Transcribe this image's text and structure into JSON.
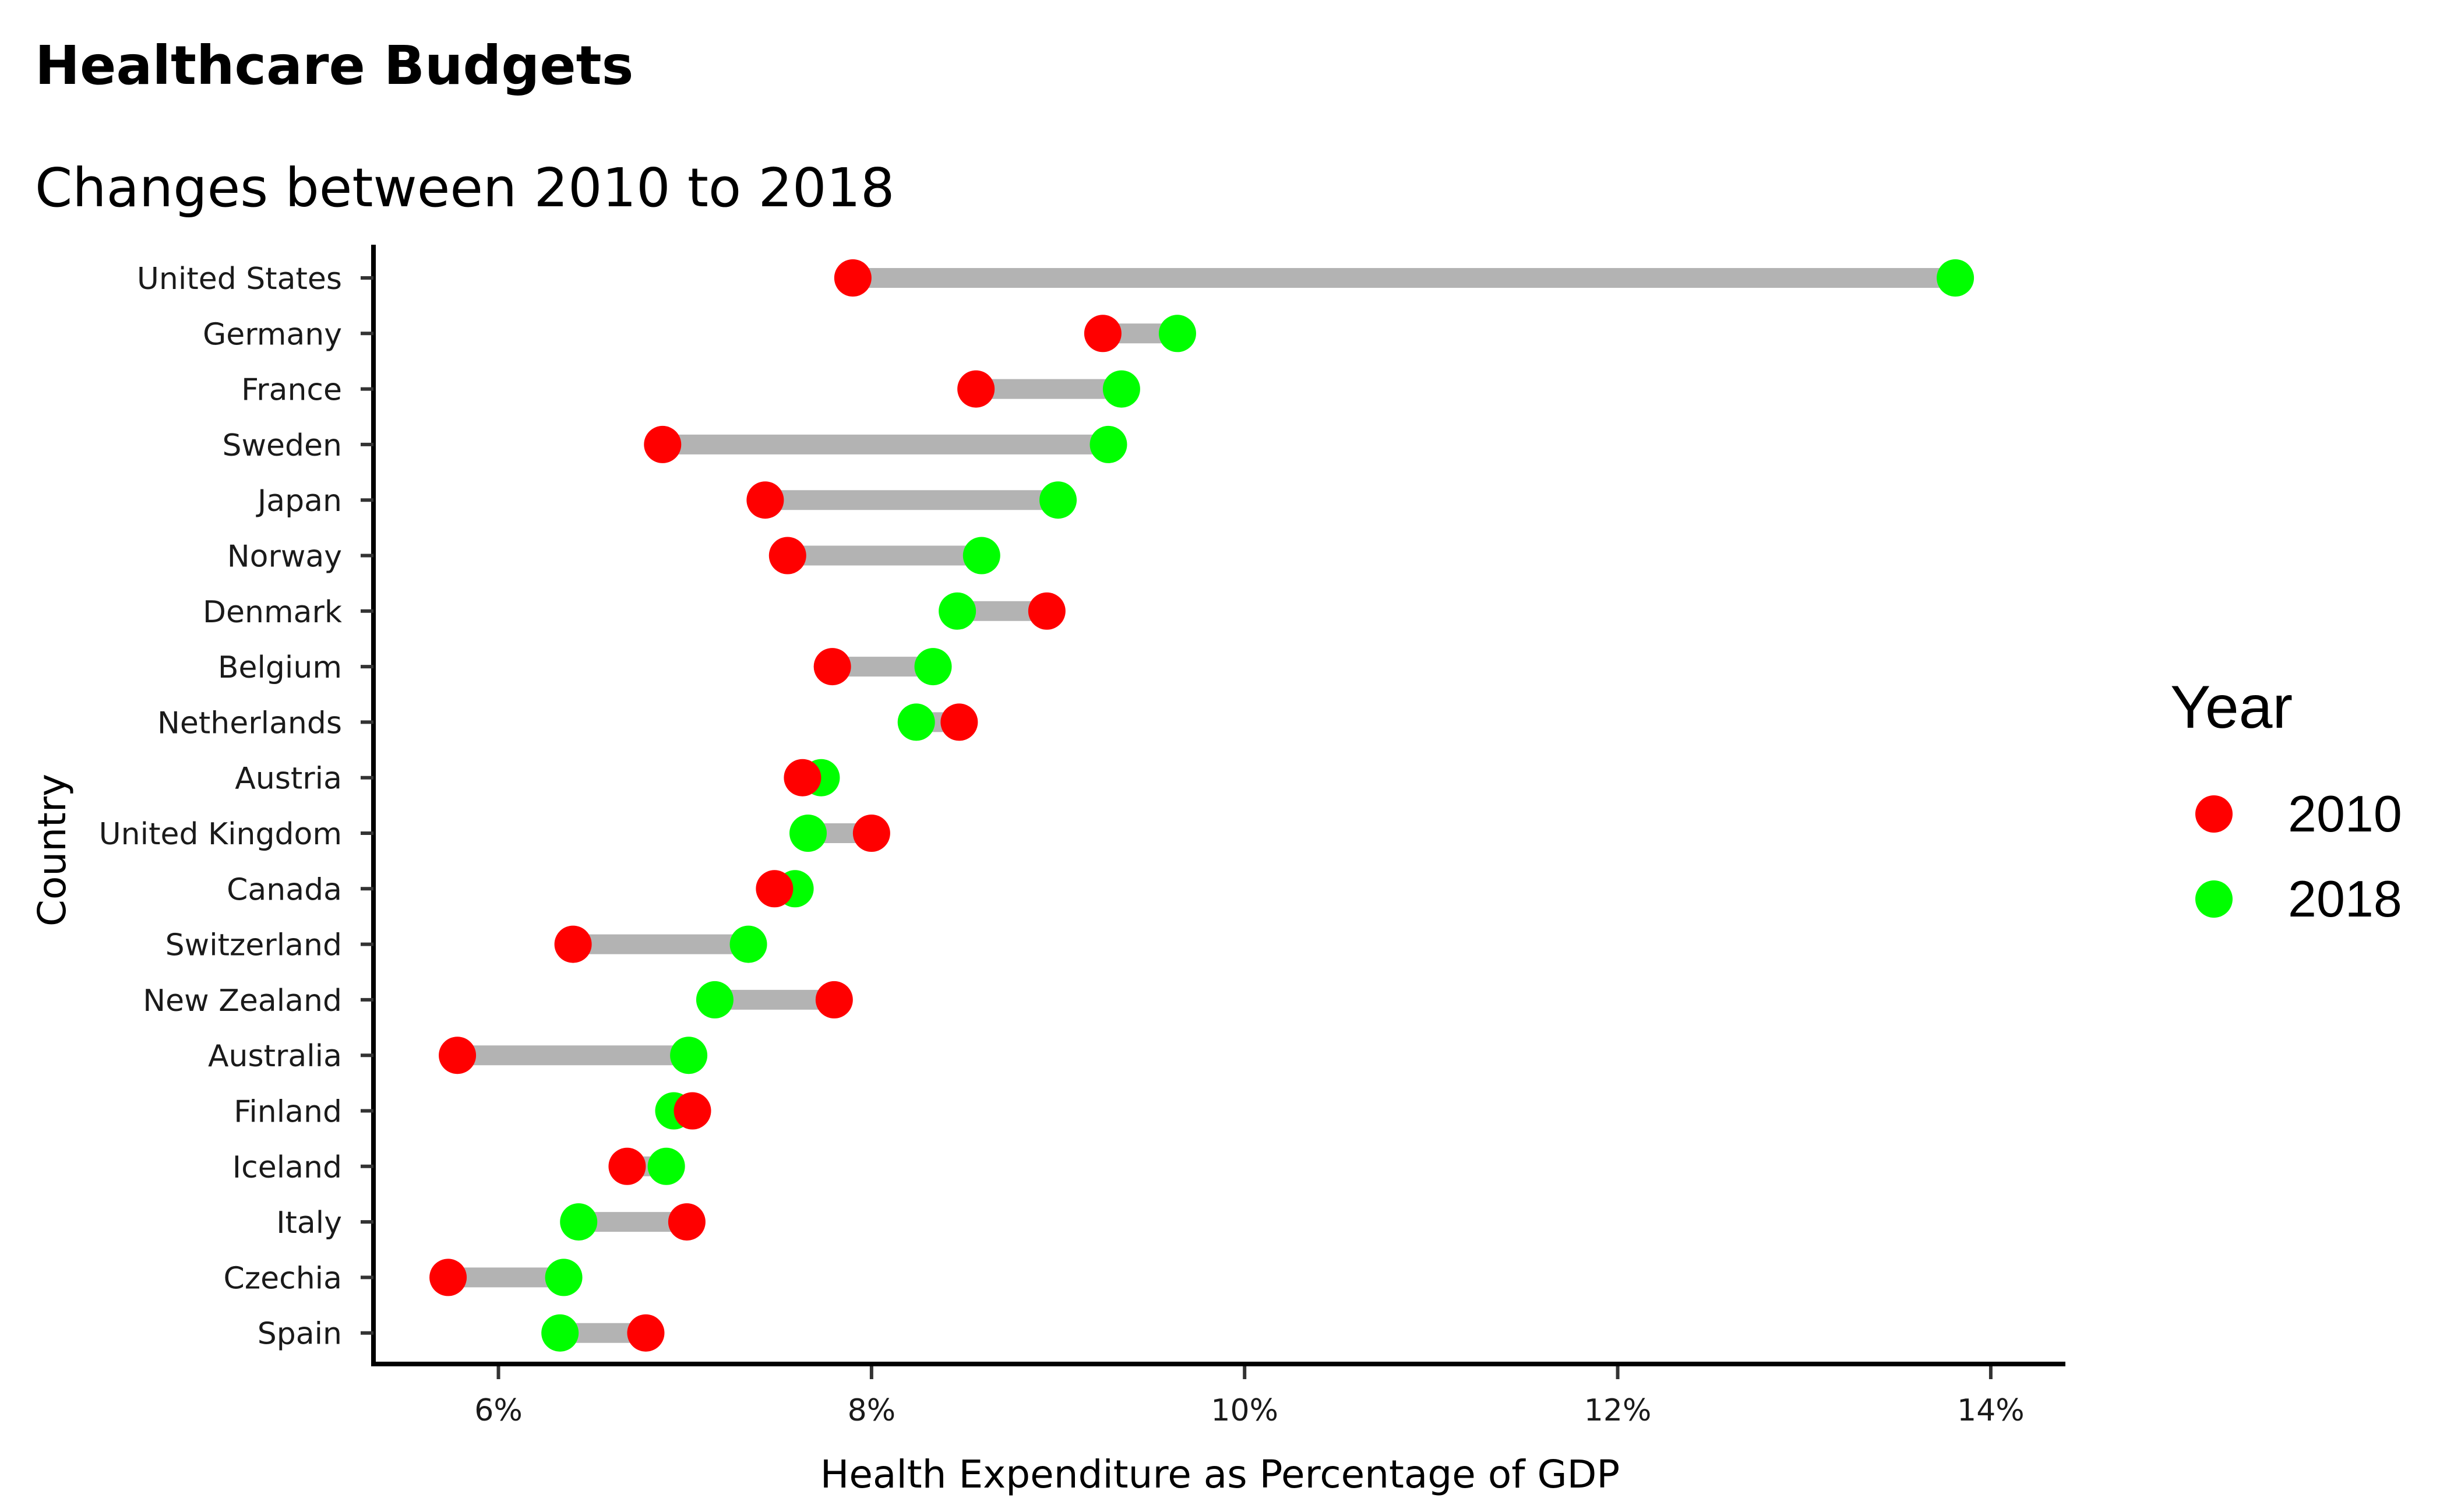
{
  "chart_data": {
    "type": "dumbbell",
    "title": "Healthcare Budgets",
    "subtitle": "Changes between 2010 to 2018",
    "xlabel": "Health Expenditure as Percentage of GDP",
    "ylabel": "Country",
    "xlim": [
      5.33,
      14.4
    ],
    "x_ticks": [
      6,
      8,
      10,
      12,
      14
    ],
    "x_tick_labels": [
      "6%",
      "8%",
      "10%",
      "12%",
      "14%"
    ],
    "grid": false,
    "legend": {
      "title": "Year",
      "position": "right",
      "entries": [
        {
          "label": "2010",
          "color": "#ff0000"
        },
        {
          "label": "2018",
          "color": "#00ff00"
        }
      ]
    },
    "segment_color": "#b3b3b3",
    "categories": [
      "United States",
      "Germany",
      "France",
      "Sweden",
      "Japan",
      "Norway",
      "Denmark",
      "Belgium",
      "Netherlands",
      "Austria",
      "United Kingdom",
      "Canada",
      "Switzerland",
      "New Zealand",
      "Australia",
      "Finland",
      "Iceland",
      "Italy",
      "Czechia",
      "Spain"
    ],
    "series": [
      {
        "name": "2010",
        "color": "#ff0000",
        "values": [
          7.9,
          9.24,
          8.56,
          6.88,
          7.43,
          7.55,
          8.94,
          7.79,
          8.47,
          7.63,
          8.0,
          7.48,
          6.4,
          7.8,
          5.78,
          7.04,
          6.69,
          7.01,
          5.73,
          6.79
        ]
      },
      {
        "name": "2018",
        "color": "#00ff00",
        "values": [
          13.81,
          9.64,
          9.34,
          9.27,
          9.0,
          8.59,
          8.46,
          8.33,
          8.24,
          7.73,
          7.66,
          7.59,
          7.34,
          7.16,
          7.02,
          6.94,
          6.9,
          6.43,
          6.35,
          6.33
        ]
      }
    ]
  }
}
